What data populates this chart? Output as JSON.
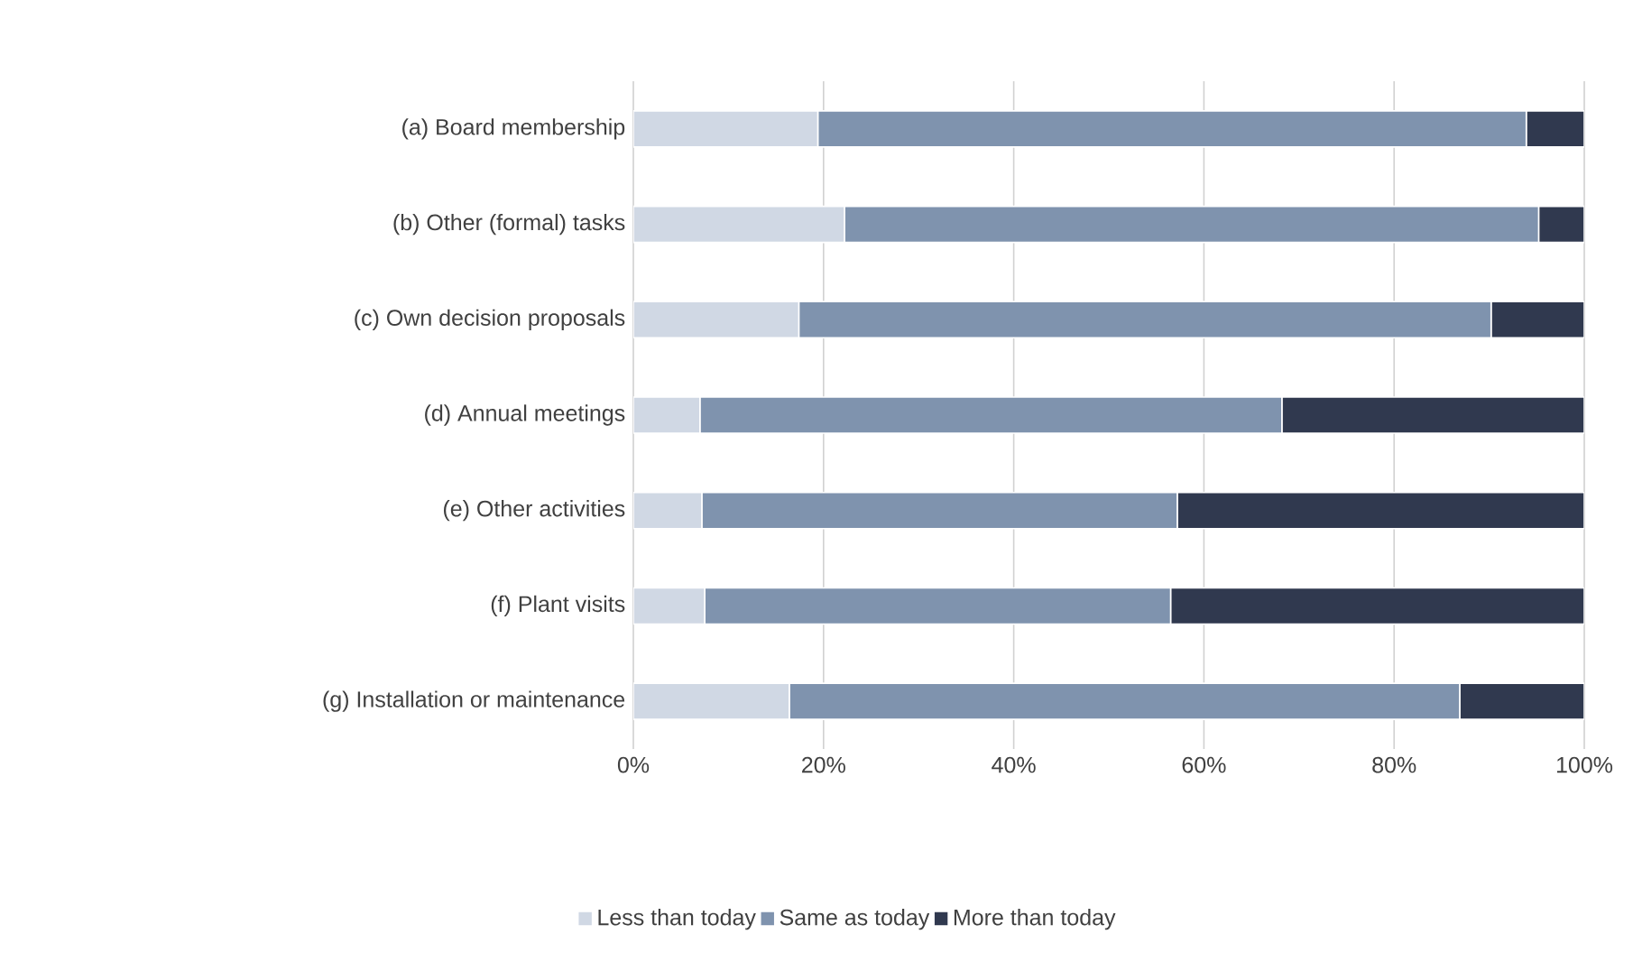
{
  "chart_data": {
    "type": "bar",
    "orientation": "horizontal",
    "stacked": true,
    "categories": [
      "(a) Board membership",
      "(b) Other (formal) tasks",
      "(c) Own decision proposals",
      "(d) Annual meetings",
      "(e) Other activities",
      "(f) Plant visits",
      "(g) Installation or maintenance"
    ],
    "series": [
      {
        "name": "Less than today",
        "color": "#d0d8e4",
        "values": [
          19.4,
          22.2,
          17.4,
          7.0,
          7.2,
          7.5,
          16.4
        ]
      },
      {
        "name": "Same as today",
        "color": "#7f93ae",
        "values": [
          74.5,
          73.0,
          72.8,
          61.2,
          50.0,
          49.0,
          70.5
        ]
      },
      {
        "name": "More than today",
        "color": "#30394f",
        "values": [
          6.1,
          4.8,
          9.8,
          31.8,
          42.8,
          43.5,
          13.1
        ]
      }
    ],
    "xlim": [
      0,
      100
    ],
    "xticks": [
      {
        "value": 0,
        "label": "0%"
      },
      {
        "value": 20,
        "label": "20%"
      },
      {
        "value": 40,
        "label": "40%"
      },
      {
        "value": 60,
        "label": "60%"
      },
      {
        "value": 80,
        "label": "80%"
      },
      {
        "value": 100,
        "label": "100%"
      }
    ],
    "grid": "x",
    "legend": "bottom"
  }
}
